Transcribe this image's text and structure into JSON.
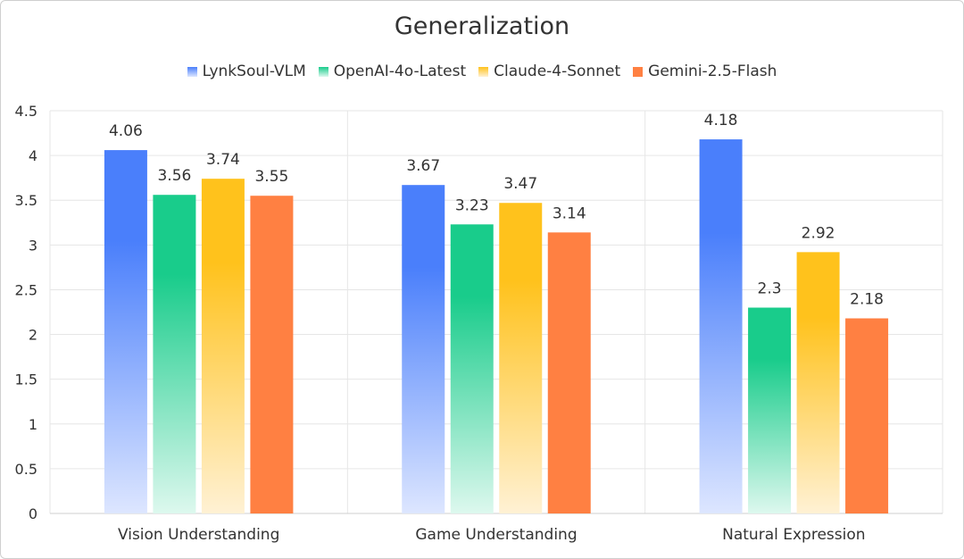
{
  "colors": {
    "grid": "#e6e6e6",
    "axis": "#cfcfcf",
    "text": "#333333"
  },
  "chart_data": {
    "type": "bar",
    "title": "Generalization",
    "xlabel": "",
    "ylabel": "",
    "ylim": [
      0,
      4.5
    ],
    "yticks": [
      "0",
      "0.5",
      "1",
      "1.5",
      "2",
      "2.5",
      "3",
      "3.5",
      "4",
      "4.5"
    ],
    "grid": true,
    "legend_position": "top",
    "categories": [
      "Vision Understanding",
      "Game Understanding",
      "Natural Expression"
    ],
    "series": [
      {
        "name": "LynkSoul-VLM",
        "values": [
          4.06,
          3.67,
          4.18
        ],
        "color": "#4a7ffb",
        "color_light": "#dde6ff"
      },
      {
        "name": "OpenAI-4o-Latest",
        "values": [
          3.56,
          3.23,
          2.3
        ],
        "color": "#19cc8b",
        "color_light": "#ddf8ee"
      },
      {
        "name": "Claude-4-Sonnet",
        "values": [
          3.74,
          3.47,
          2.92
        ],
        "color": "#ffc21c",
        "color_light": "#fff1d4"
      },
      {
        "name": "Gemini-2.5-Flash",
        "values": [
          3.55,
          3.14,
          2.18
        ],
        "color": "#ff8042",
        "color_light": "#ff8042"
      }
    ]
  }
}
